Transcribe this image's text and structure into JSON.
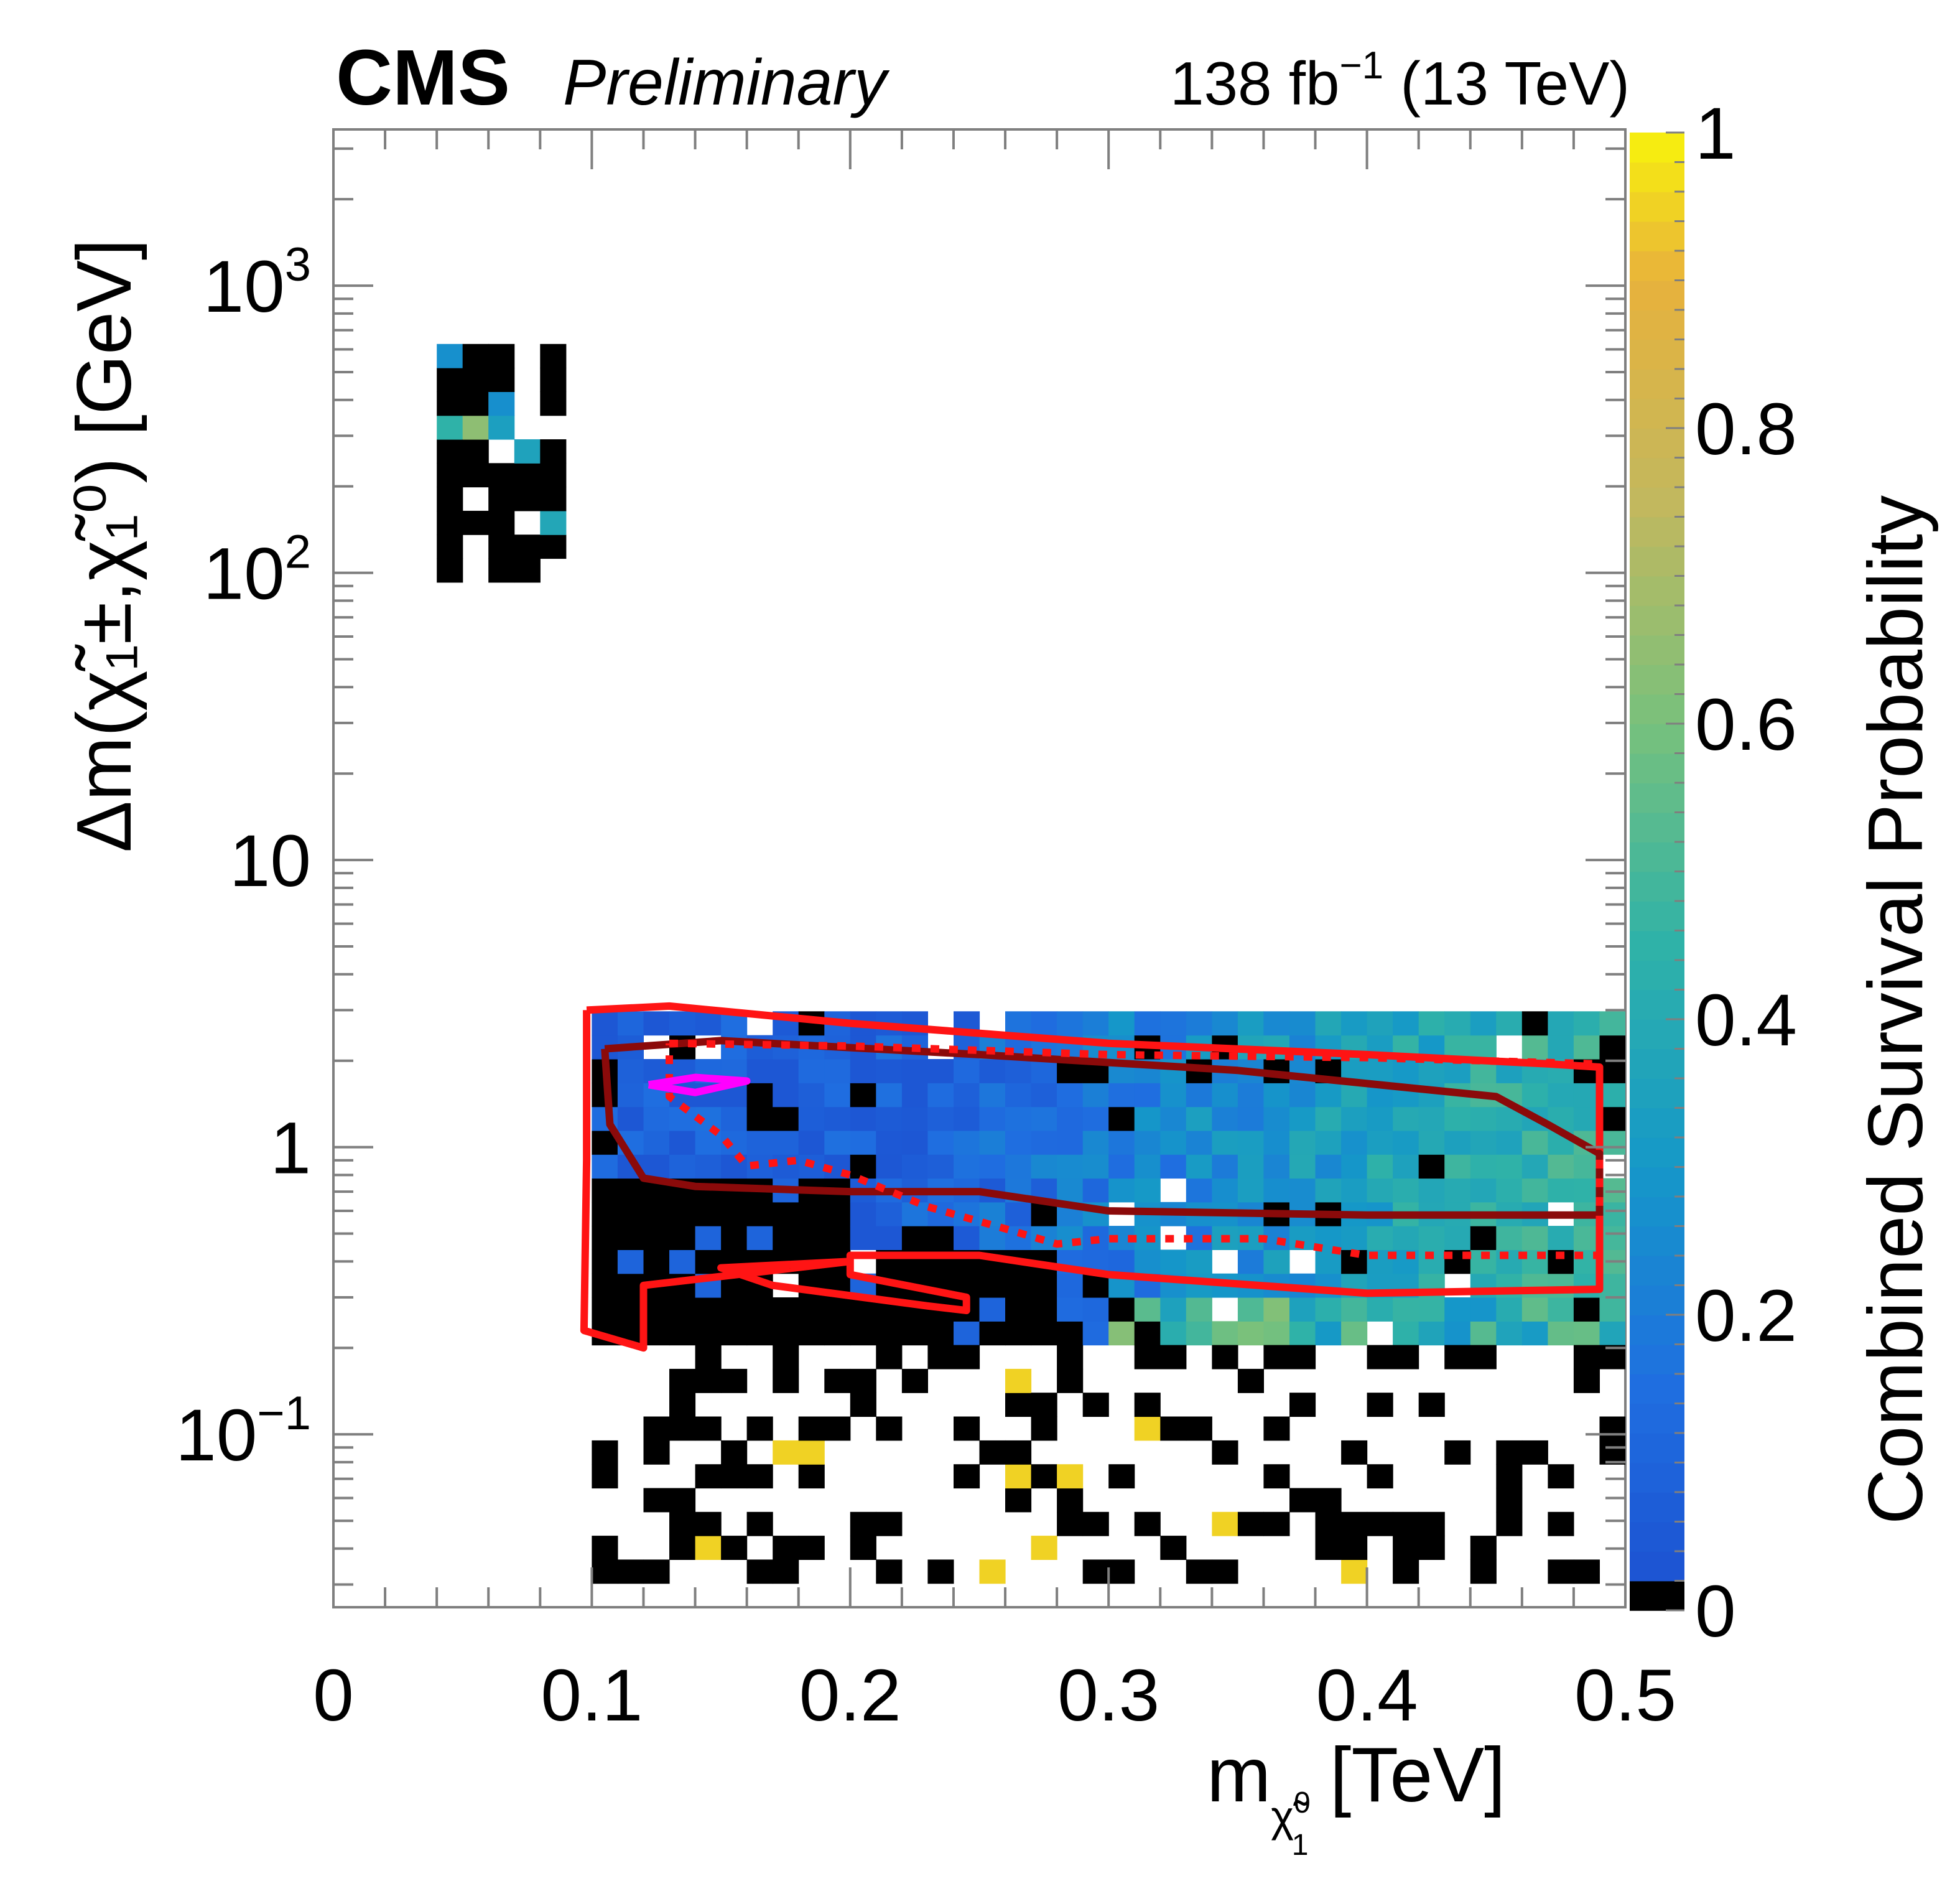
{
  "chart_data": {
    "type": "heatmap",
    "experiment": "CMS",
    "status": "Preliminary",
    "luminosity": {
      "value": "138 fb",
      "exponent": "−1",
      "energy": " (13 TeV)"
    },
    "xlabel": {
      "main": "m",
      "sub": "χ̃",
      "sub_super": "0",
      "sub_sub": "1",
      "unit": " [TeV]"
    },
    "ylabel": "Δm(χ̃₁±,χ̃₁⁰) [GeV]",
    "zlabel": "Combined Survival Probability",
    "xlim": [
      0,
      0.5
    ],
    "ylim": [
      0.025,
      3500
    ],
    "yscale": "log",
    "zlim": [
      0,
      1
    ],
    "x_ticks": [
      "0",
      "0.1",
      "0.2",
      "0.3",
      "0.4",
      "0.5"
    ],
    "y_ticks": [
      {
        "value": 0.1,
        "base": "10",
        "exp": "−1"
      },
      {
        "value": 1,
        "base": "1",
        "exp": ""
      },
      {
        "value": 10,
        "base": "10",
        "exp": ""
      },
      {
        "value": 100,
        "base": "10",
        "exp": "2"
      },
      {
        "value": 1000,
        "base": "10",
        "exp": "3"
      }
    ],
    "z_ticks": [
      "0",
      "0.2",
      "0.4",
      "0.6",
      "0.8",
      "1"
    ],
    "colors": {
      "zero": "#000000",
      "low": "#1c4fd0",
      "mid": "#1598c8",
      "high": "#e8b23c",
      "max": "#f8f20c",
      "contour_solid": "#ff1414",
      "contour_dark": "#8b0a0a",
      "contour_magenta": "#ff00ff"
    },
    "contours": [
      {
        "name": "red-solid-region",
        "style": "solid",
        "points": [
          [
            0.098,
            3.0
          ],
          [
            0.13,
            3.1
          ],
          [
            0.2,
            2.7
          ],
          [
            0.3,
            2.3
          ],
          [
            0.4,
            2.1
          ],
          [
            0.47,
            1.95
          ],
          [
            0.49,
            1.9
          ],
          [
            0.49,
            0.32
          ],
          [
            0.4,
            0.31
          ],
          [
            0.3,
            0.36
          ],
          [
            0.25,
            0.42
          ],
          [
            0.2,
            0.42
          ],
          [
            0.2,
            0.36
          ],
          [
            0.245,
            0.3
          ],
          [
            0.245,
            0.27
          ],
          [
            0.23,
            0.28
          ],
          [
            0.17,
            0.33
          ],
          [
            0.15,
            0.38
          ],
          [
            0.2,
            0.4
          ],
          [
            0.12,
            0.33
          ],
          [
            0.12,
            0.2
          ],
          [
            0.097,
            0.23
          ],
          [
            0.098,
            0.9
          ],
          [
            0.098,
            3.0
          ]
        ]
      },
      {
        "name": "dark-red-solid-region",
        "style": "solid",
        "points": [
          [
            0.105,
            2.2
          ],
          [
            0.15,
            2.35
          ],
          [
            0.25,
            2.1
          ],
          [
            0.35,
            1.85
          ],
          [
            0.45,
            1.5
          ],
          [
            0.47,
            1.2
          ],
          [
            0.49,
            0.95
          ],
          [
            0.49,
            0.58
          ],
          [
            0.4,
            0.58
          ],
          [
            0.3,
            0.6
          ],
          [
            0.25,
            0.7
          ],
          [
            0.2,
            0.7
          ],
          [
            0.14,
            0.73
          ],
          [
            0.12,
            0.78
          ],
          [
            0.107,
            1.2
          ],
          [
            0.105,
            2.2
          ]
        ]
      },
      {
        "name": "red-dotted-region",
        "style": "dotted",
        "points": [
          [
            0.13,
            2.3
          ],
          [
            0.2,
            2.25
          ],
          [
            0.3,
            2.1
          ],
          [
            0.4,
            2.05
          ],
          [
            0.49,
            1.95
          ],
          [
            0.49,
            0.42
          ],
          [
            0.4,
            0.42
          ],
          [
            0.36,
            0.48
          ],
          [
            0.3,
            0.48
          ],
          [
            0.28,
            0.46
          ],
          [
            0.26,
            0.52
          ],
          [
            0.23,
            0.62
          ],
          [
            0.2,
            0.8
          ],
          [
            0.18,
            0.9
          ],
          [
            0.16,
            0.86
          ],
          [
            0.15,
            1.1
          ],
          [
            0.13,
            1.5
          ],
          [
            0.13,
            2.3
          ]
        ]
      },
      {
        "name": "magenta-best-fit",
        "style": "solid",
        "points": [
          [
            0.122,
            1.65
          ],
          [
            0.14,
            1.75
          ],
          [
            0.16,
            1.7
          ],
          [
            0.14,
            1.55
          ],
          [
            0.122,
            1.65
          ]
        ]
      }
    ],
    "cell_groups": [
      {
        "name": "high-dm-cluster",
        "x": [
          0.04,
          0.09
        ],
        "y": [
          100,
          650
        ],
        "density": 0.75,
        "dominant": "zero"
      },
      {
        "name": "compressed-band",
        "x": [
          0.1,
          0.5
        ],
        "y": [
          0.19,
          3.2
        ],
        "density": 0.96,
        "dominant": "mixed"
      },
      {
        "name": "low-dm-scatter",
        "x": [
          0.1,
          0.5
        ],
        "y": [
          0.03,
          0.19
        ],
        "density": 0.35,
        "dominant": "zero"
      }
    ]
  }
}
